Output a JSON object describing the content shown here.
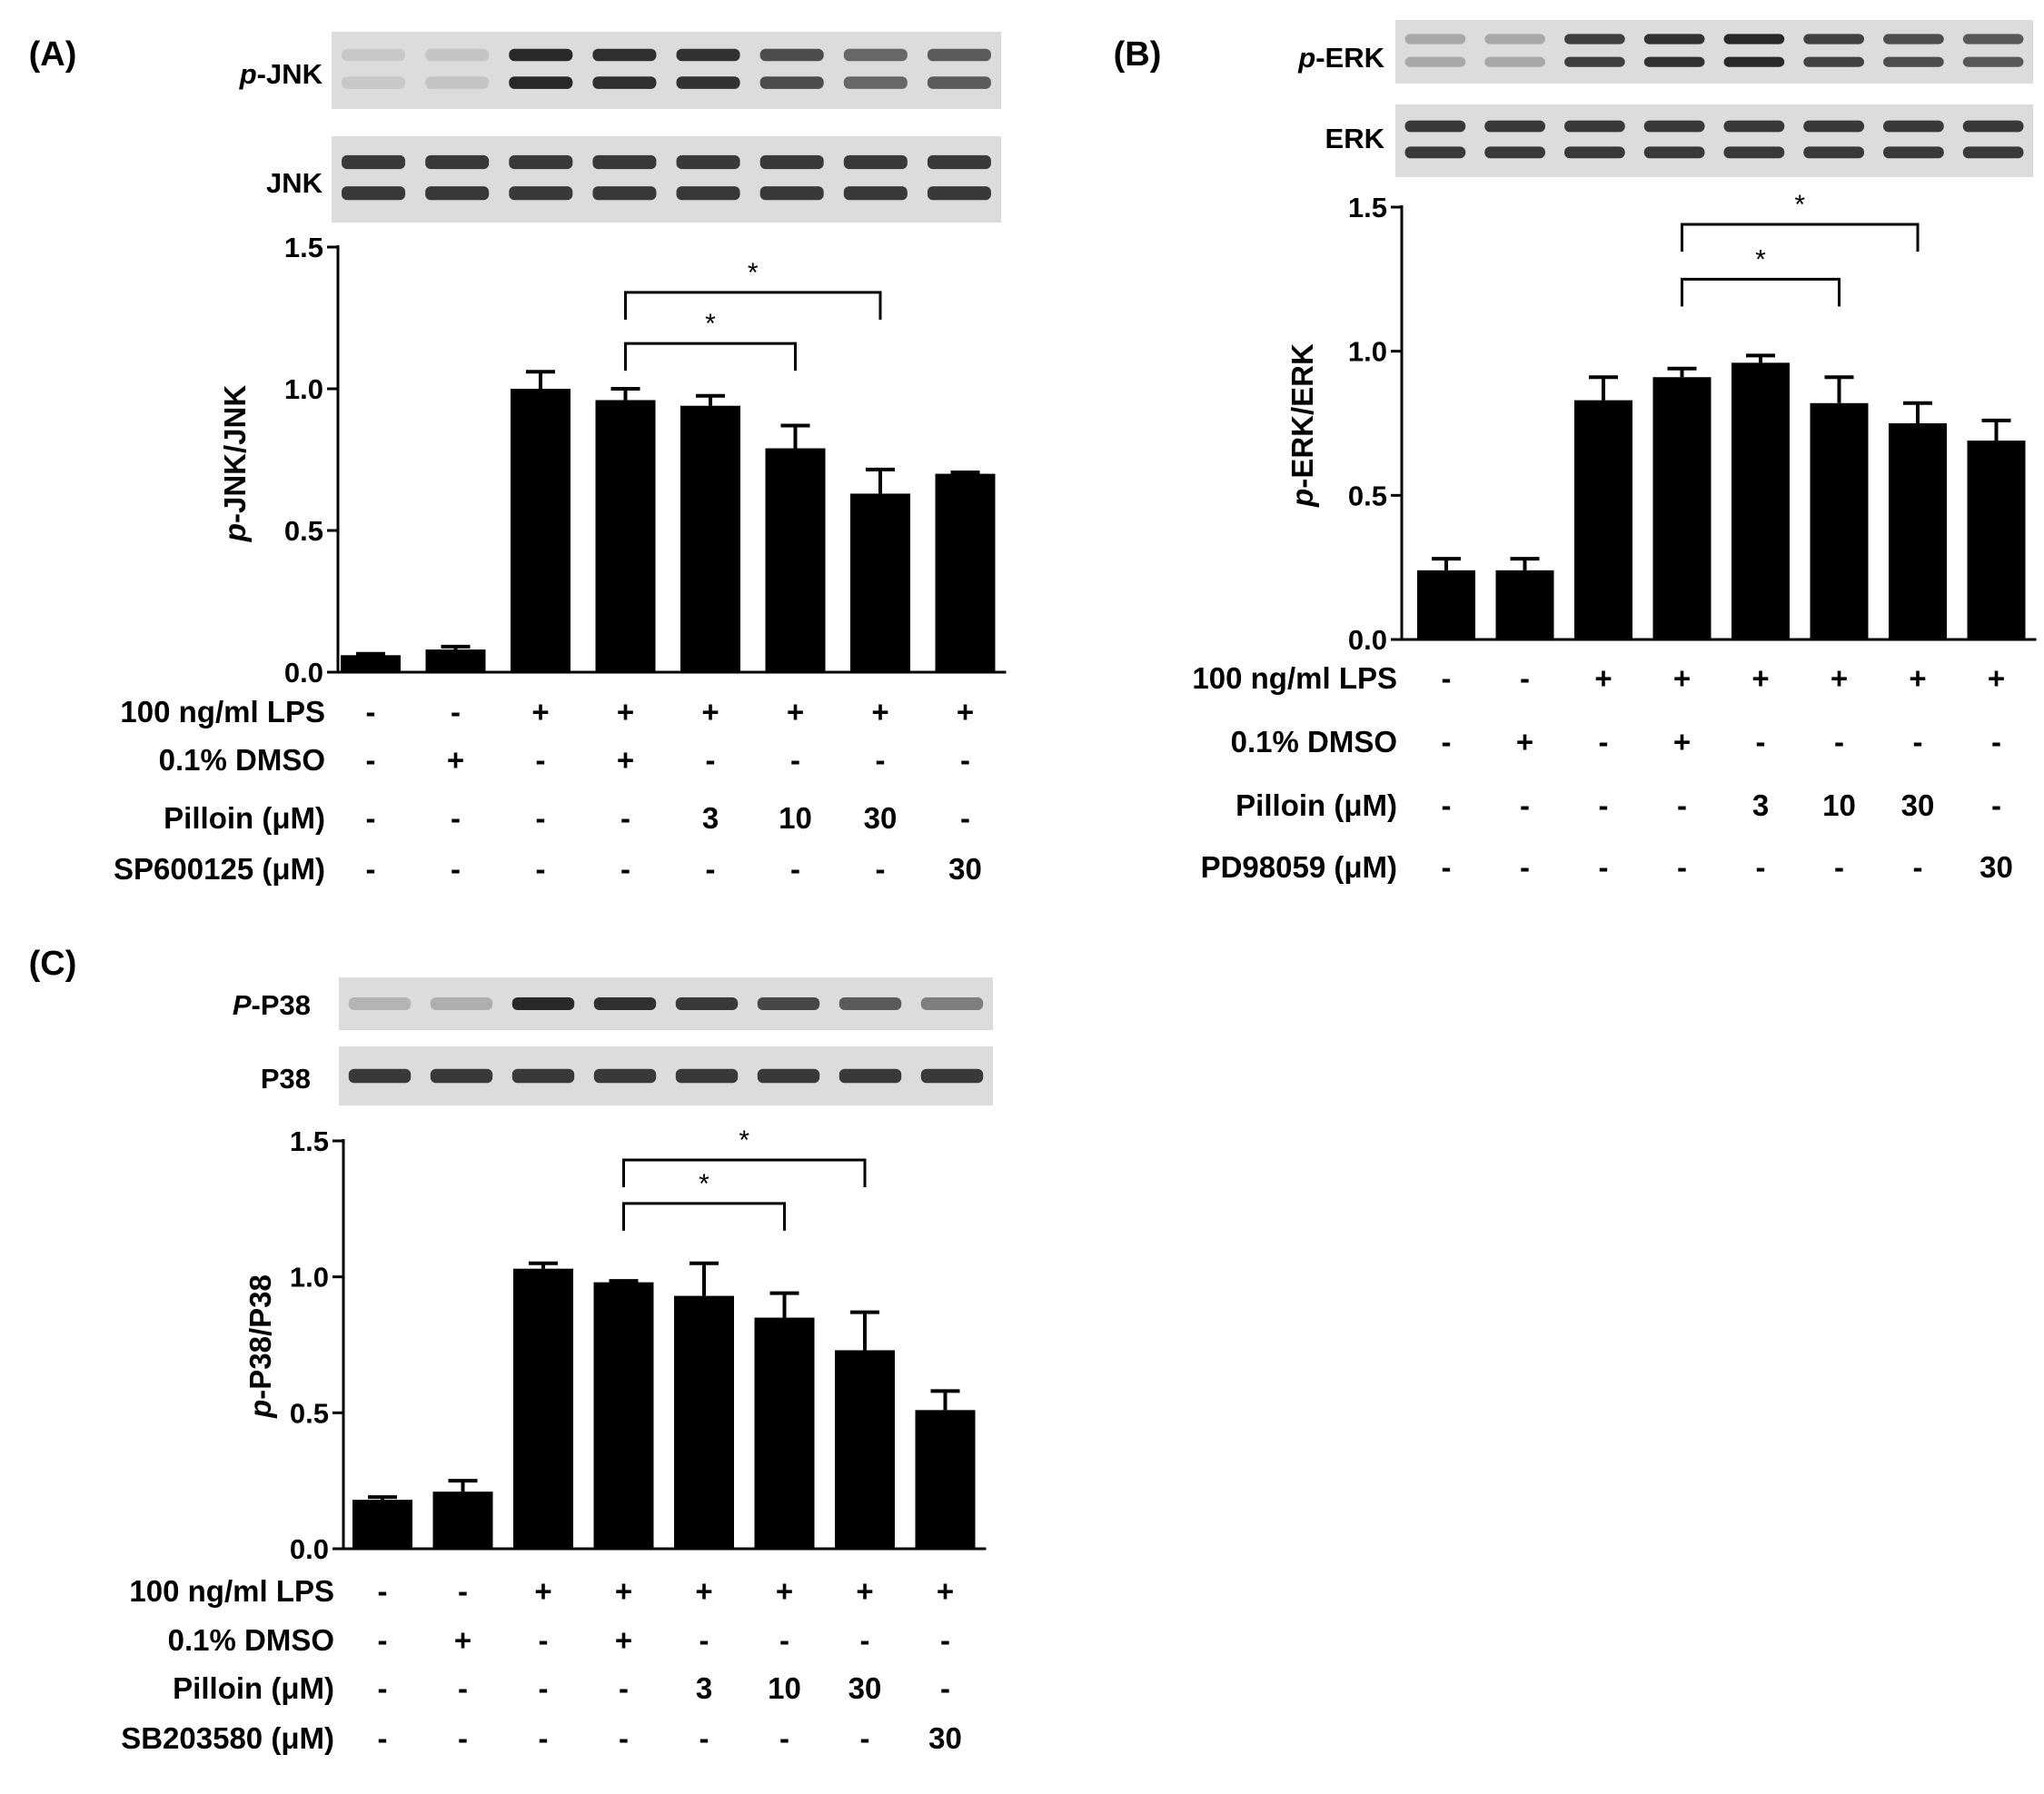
{
  "chart_data": [
    {
      "type": "bar",
      "panel_label": "(A)",
      "ylabel_prefix": "p",
      "ylabel_rest": "-JNK/JNK",
      "ylim": [
        0,
        1.5
      ],
      "yticks": [
        "0.0",
        "0.5",
        "1.0",
        "1.5"
      ],
      "values": [
        0.06,
        0.08,
        1.0,
        0.96,
        0.94,
        0.79,
        0.63,
        0.7
      ],
      "errors": [
        0.005,
        0.01,
        0.06,
        0.04,
        0.035,
        0.08,
        0.085,
        0.005
      ],
      "blots": [
        {
          "prefix": "p",
          "rest": "-JNK",
          "bands": 2
        },
        {
          "prefix": "",
          "rest": "JNK",
          "bands": 2
        }
      ],
      "conditions": [
        {
          "label": "100 ng/ml LPS",
          "values": [
            "-",
            "-",
            "+",
            "+",
            "+",
            "+",
            "+",
            "+"
          ]
        },
        {
          "label": "0.1% DMSO",
          "values": [
            "-",
            "+",
            "-",
            "+",
            "-",
            "-",
            "-",
            "-"
          ]
        },
        {
          "label": "Pilloin (μM)",
          "values": [
            "-",
            "-",
            "-",
            "-",
            "3",
            "10",
            "30",
            "-"
          ]
        },
        {
          "label": "SP600125 (μM)",
          "values": [
            "-",
            "-",
            "-",
            "-",
            "-",
            "-",
            "-",
            "30"
          ]
        }
      ],
      "annotations": [
        {
          "from_bar": 4,
          "to_bar": 7,
          "level": 1.34,
          "text": "*"
        },
        {
          "from_bar": 4,
          "to_bar": 6,
          "level": 1.16,
          "text": "*"
        }
      ]
    },
    {
      "type": "bar",
      "panel_label": "(B)",
      "ylabel_prefix": "p",
      "ylabel_rest": "-ERK/ERK",
      "ylim": [
        0,
        1.5
      ],
      "yticks": [
        "0.0",
        "0.5",
        "1.0",
        "1.5"
      ],
      "values": [
        0.24,
        0.24,
        0.83,
        0.91,
        0.96,
        0.82,
        0.75,
        0.69
      ],
      "errors": [
        0.04,
        0.04,
        0.08,
        0.03,
        0.025,
        0.09,
        0.07,
        0.07
      ],
      "blots": [
        {
          "prefix": "p",
          "rest": "-ERK",
          "bands": 2
        },
        {
          "prefix": "",
          "rest": "ERK",
          "bands": 2
        }
      ],
      "conditions": [
        {
          "label": "100 ng/ml LPS",
          "values": [
            "-",
            "-",
            "+",
            "+",
            "+",
            "+",
            "+",
            "+"
          ]
        },
        {
          "label": "0.1% DMSO",
          "values": [
            "-",
            "+",
            "-",
            "+",
            "-",
            "-",
            "-",
            "-"
          ]
        },
        {
          "label": "Pilloin (μM)",
          "values": [
            "-",
            "-",
            "-",
            "-",
            "3",
            "10",
            "30",
            "-"
          ]
        },
        {
          "label": "PD98059 (μM)",
          "values": [
            "-",
            "-",
            "-",
            "-",
            "-",
            "-",
            "-",
            "30"
          ]
        }
      ],
      "annotations": [
        {
          "from_bar": 4,
          "to_bar": 7,
          "level": 1.44,
          "text": "*"
        },
        {
          "from_bar": 4,
          "to_bar": 6,
          "level": 1.25,
          "text": "*"
        }
      ]
    },
    {
      "type": "bar",
      "panel_label": "(C)",
      "ylabel_prefix": "p",
      "ylabel_rest": "-P38/P38",
      "ylim": [
        0,
        1.5
      ],
      "yticks": [
        "0.0",
        "0.5",
        "1.0",
        "1.5"
      ],
      "values": [
        0.18,
        0.21,
        1.03,
        0.98,
        0.93,
        0.85,
        0.73,
        0.51
      ],
      "errors": [
        0.01,
        0.04,
        0.02,
        0.005,
        0.12,
        0.09,
        0.14,
        0.07
      ],
      "blots": [
        {
          "prefix": "P",
          "rest": "-P38",
          "bands": 1
        },
        {
          "prefix": "",
          "rest": "P38",
          "bands": 1
        }
      ],
      "conditions": [
        {
          "label": "100 ng/ml LPS",
          "values": [
            "-",
            "-",
            "+",
            "+",
            "+",
            "+",
            "+",
            "+"
          ]
        },
        {
          "label": "0.1% DMSO",
          "values": [
            "-",
            "+",
            "-",
            "+",
            "-",
            "-",
            "-",
            "-"
          ]
        },
        {
          "label": "Pilloin (μM)",
          "values": [
            "-",
            "-",
            "-",
            "-",
            "3",
            "10",
            "30",
            "-"
          ]
        },
        {
          "label": "SB203580 (μM)",
          "values": [
            "-",
            "-",
            "-",
            "-",
            "-",
            "-",
            "-",
            "30"
          ]
        }
      ],
      "annotations": [
        {
          "from_bar": 4,
          "to_bar": 7,
          "level": 1.43,
          "text": "*"
        },
        {
          "from_bar": 4,
          "to_bar": 6,
          "level": 1.27,
          "text": "*"
        }
      ]
    }
  ]
}
